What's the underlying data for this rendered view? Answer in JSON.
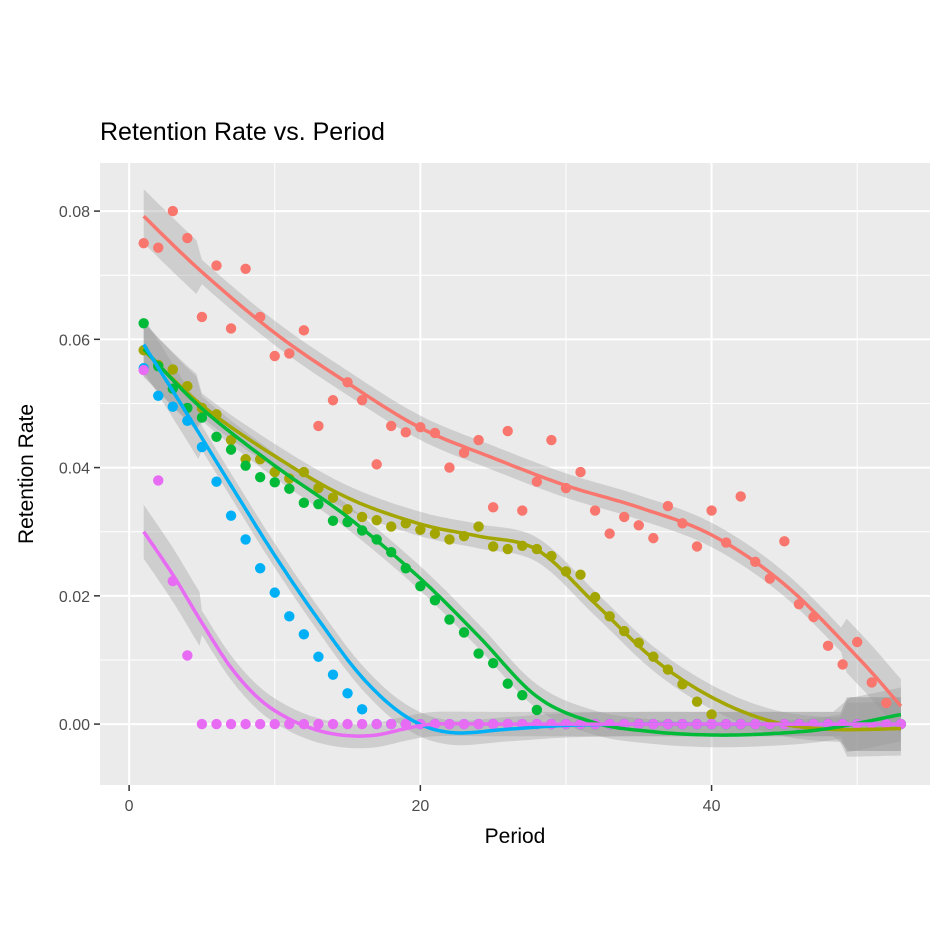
{
  "chart_data": {
    "type": "scatter",
    "title": "Retention Rate vs. Period",
    "xlabel": "Period",
    "ylabel": "Retention Rate",
    "xlim": [
      -2,
      55
    ],
    "ylim": [
      -0.0095,
      0.0875
    ],
    "x_ticks": [
      0,
      20,
      40
    ],
    "x_tick_labels": [
      "0",
      "20",
      "40"
    ],
    "y_ticks": [
      0,
      0.02,
      0.04,
      0.06,
      0.08
    ],
    "y_tick_labels": [
      "0.00",
      "0.02",
      "0.04",
      "0.06",
      "0.08"
    ],
    "grid": true,
    "legend": "none",
    "panel_background": "#ebebeb",
    "band_color": "#999999",
    "series": [
      {
        "color": "#f8766d",
        "x": [
          1,
          2,
          3,
          4,
          5,
          6,
          7,
          8,
          9,
          10,
          11,
          12,
          13,
          14,
          15,
          16,
          17,
          18,
          19,
          20,
          21,
          22,
          23,
          24,
          25,
          26,
          27,
          28,
          29,
          30,
          31,
          32,
          33,
          34,
          35,
          36,
          37,
          38,
          39,
          40,
          41,
          42,
          43,
          44,
          45,
          46,
          47,
          48,
          49,
          50,
          51,
          52,
          53
        ],
        "y": [
          0.075,
          0.0743,
          0.08,
          0.0758,
          0.0635,
          0.0715,
          0.0617,
          0.071,
          0.0635,
          0.0574,
          0.0578,
          0.0614,
          0.0465,
          0.0505,
          0.0533,
          0.0505,
          0.0405,
          0.0465,
          0.0455,
          0.0463,
          0.0454,
          0.04,
          0.0423,
          0.0443,
          0.0338,
          0.0457,
          0.0333,
          0.0378,
          0.0443,
          0.0368,
          0.0393,
          0.0333,
          0.0297,
          0.0323,
          0.031,
          0.029,
          0.034,
          0.0313,
          0.0277,
          0.0333,
          0.0283,
          0.0355,
          0.0253,
          0.0227,
          0.0285,
          0.0187,
          0.0167,
          0.0122,
          0.0093,
          0.0128,
          0.0065,
          0.0033,
          0.0
        ],
        "smooth": [
          [
            1,
            0.0792
          ],
          [
            5,
            0.0705
          ],
          [
            10,
            0.061
          ],
          [
            15,
            0.0532
          ],
          [
            20,
            0.0462
          ],
          [
            25,
            0.0415
          ],
          [
            30,
            0.0372
          ],
          [
            35,
            0.0338
          ],
          [
            40,
            0.0295
          ],
          [
            45,
            0.0218
          ],
          [
            50,
            0.0105
          ],
          [
            53,
            0.0028
          ]
        ]
      },
      {
        "color": "#a3a500",
        "x": [
          1,
          2,
          3,
          4,
          5,
          6,
          7,
          8,
          9,
          10,
          11,
          12,
          13,
          14,
          15,
          16,
          17,
          18,
          19,
          20,
          21,
          22,
          23,
          24,
          25,
          26,
          27,
          28,
          29,
          30,
          31,
          32,
          33,
          34,
          35,
          36,
          37,
          38,
          39,
          40,
          41,
          42,
          43,
          44,
          45,
          46,
          47,
          48,
          49,
          50,
          51,
          52,
          53
        ],
        "y": [
          0.0583,
          0.056,
          0.0553,
          0.0527,
          0.0493,
          0.0483,
          0.0443,
          0.0413,
          0.0413,
          0.0393,
          0.0383,
          0.0393,
          0.0368,
          0.0353,
          0.0335,
          0.0323,
          0.0318,
          0.0308,
          0.0313,
          0.0303,
          0.0297,
          0.0288,
          0.0293,
          0.0308,
          0.0277,
          0.0273,
          0.0278,
          0.0273,
          0.0262,
          0.0238,
          0.0233,
          0.0198,
          0.0168,
          0.0145,
          0.0127,
          0.0105,
          0.0085,
          0.0062,
          0.0035,
          0.0015,
          0.0,
          0.0,
          0.0,
          0.0,
          0.0,
          0.0,
          0.0,
          0.0,
          0.0,
          0.0,
          0.0,
          0.0,
          0.0
        ],
        "smooth": [
          [
            1,
            0.0583
          ],
          [
            5,
            0.0497
          ],
          [
            10,
            0.0418
          ],
          [
            15,
            0.0353
          ],
          [
            20,
            0.0312
          ],
          [
            24,
            0.0293
          ],
          [
            28,
            0.0272
          ],
          [
            32,
            0.0188
          ],
          [
            36,
            0.0102
          ],
          [
            40,
            0.0042
          ],
          [
            44,
            0.0005
          ],
          [
            48,
            -0.0008
          ],
          [
            53,
            -0.0007
          ]
        ]
      },
      {
        "color": "#00ba38",
        "x": [
          1,
          2,
          3,
          4,
          5,
          6,
          7,
          8,
          9,
          10,
          11,
          12,
          13,
          14,
          15,
          16,
          17,
          18,
          19,
          20,
          21,
          22,
          23,
          24,
          25,
          26,
          27,
          28,
          29,
          30,
          31,
          32,
          33,
          34,
          35,
          36,
          37,
          38,
          39,
          40,
          41,
          42,
          43,
          44,
          45,
          46,
          47,
          48,
          49,
          50,
          51,
          52,
          53
        ],
        "y": [
          0.0625,
          0.0558,
          0.0523,
          0.0493,
          0.0478,
          0.0448,
          0.0428,
          0.0403,
          0.0385,
          0.0377,
          0.0367,
          0.0345,
          0.0343,
          0.0317,
          0.0315,
          0.0302,
          0.0288,
          0.0268,
          0.0243,
          0.0215,
          0.0193,
          0.0163,
          0.0143,
          0.011,
          0.0095,
          0.0063,
          0.0045,
          0.0022,
          0.0,
          0.0,
          0.0,
          0.0,
          0.0,
          0.0,
          0.0,
          0.0,
          0.0,
          0.0,
          0.0,
          0.0,
          0.0,
          0.0,
          0.0,
          0.0,
          0.0,
          0.0,
          0.0,
          0.0,
          0.0,
          0.0,
          0.0,
          0.0,
          0.0
        ],
        "smooth": [
          [
            1,
            0.0585
          ],
          [
            5,
            0.0492
          ],
          [
            10,
            0.0403
          ],
          [
            15,
            0.0323
          ],
          [
            20,
            0.0227
          ],
          [
            24,
            0.0137
          ],
          [
            28,
            0.0043
          ],
          [
            32,
            0.0002
          ],
          [
            36,
            -0.0012
          ],
          [
            40,
            -0.0017
          ],
          [
            44,
            -0.0015
          ],
          [
            48,
            -0.0007
          ],
          [
            53,
            0.0015
          ]
        ]
      },
      {
        "color": "#00b0f6",
        "x": [
          1,
          2,
          3,
          4,
          5,
          6,
          7,
          8,
          9,
          10,
          11,
          12,
          13,
          14,
          15,
          16,
          17,
          18,
          19,
          20,
          21,
          22,
          23,
          24,
          25,
          26,
          27,
          28,
          29,
          30,
          31,
          32,
          33,
          34,
          35,
          36,
          37,
          38,
          39,
          40,
          41,
          42,
          43,
          44,
          45,
          46,
          47,
          48,
          49,
          50,
          51,
          52,
          53
        ],
        "y": [
          0.0555,
          0.0512,
          0.0495,
          0.0473,
          0.0432,
          0.0378,
          0.0325,
          0.0288,
          0.0243,
          0.0205,
          0.0168,
          0.014,
          0.0105,
          0.0077,
          0.0048,
          0.0023,
          0.0,
          0.0,
          0.0,
          0.0,
          0.0,
          0.0,
          0.0,
          0.0,
          0.0,
          0.0,
          0.0,
          0.0,
          0.0,
          0.0,
          0.0,
          0.0,
          0.0,
          0.0,
          0.0,
          0.0,
          0.0,
          0.0,
          0.0,
          0.0,
          0.0,
          0.0,
          0.0,
          0.0,
          0.0,
          0.0,
          0.0,
          0.0,
          0.0,
          0.0,
          0.0,
          0.0,
          0.0
        ],
        "smooth": [
          [
            1,
            0.0592
          ],
          [
            4,
            0.0483
          ],
          [
            7,
            0.0372
          ],
          [
            10,
            0.0263
          ],
          [
            13,
            0.0163
          ],
          [
            16,
            0.0073
          ],
          [
            19,
            0.0012
          ],
          [
            22,
            -0.0013
          ],
          [
            26,
            -0.0008
          ],
          [
            30,
            -0.0002
          ],
          [
            35,
            0.0
          ],
          [
            40,
            0.0
          ],
          [
            45,
            0.0
          ],
          [
            50,
            0.0
          ],
          [
            53,
            0.0
          ]
        ]
      },
      {
        "color": "#e76bf3",
        "x": [
          1,
          2,
          3,
          4,
          5,
          6,
          7,
          8,
          9,
          10,
          11,
          12,
          13,
          14,
          15,
          16,
          17,
          18,
          19,
          20,
          21,
          22,
          23,
          24,
          25,
          26,
          27,
          28,
          29,
          30,
          31,
          32,
          33,
          34,
          35,
          36,
          37,
          38,
          39,
          40,
          41,
          42,
          43,
          44,
          45,
          46,
          47,
          48,
          49,
          50,
          51,
          52,
          53
        ],
        "y": [
          0.0552,
          0.038,
          0.0223,
          0.0107,
          0.0,
          0.0,
          0.0,
          0.0,
          0.0,
          0.0,
          0.0,
          0.0,
          0.0,
          0.0,
          0.0,
          0.0,
          0.0,
          0.0,
          0.0,
          0.0,
          0.0,
          0.0,
          0.0,
          0.0,
          0.0,
          0.0,
          0.0,
          0.0,
          0.0,
          0.0,
          0.0,
          0.0,
          0.0,
          0.0,
          0.0,
          0.0,
          0.0,
          0.0,
          0.0,
          0.0,
          0.0,
          0.0,
          0.0,
          0.0,
          0.0,
          0.0,
          0.0,
          0.0,
          0.0,
          0.0,
          0.0,
          0.0,
          0.0
        ],
        "smooth": [
          [
            1,
            0.03
          ],
          [
            3,
            0.0233
          ],
          [
            5,
            0.0158
          ],
          [
            7,
            0.0088
          ],
          [
            9,
            0.0038
          ],
          [
            11,
            0.0008
          ],
          [
            13,
            -0.001
          ],
          [
            15,
            -0.0018
          ],
          [
            17,
            -0.0017
          ],
          [
            19,
            -0.0007
          ],
          [
            21,
            0.0
          ],
          [
            25,
            0.0
          ],
          [
            30,
            0.0
          ],
          [
            40,
            0.0
          ],
          [
            53,
            0.0
          ]
        ]
      }
    ]
  }
}
